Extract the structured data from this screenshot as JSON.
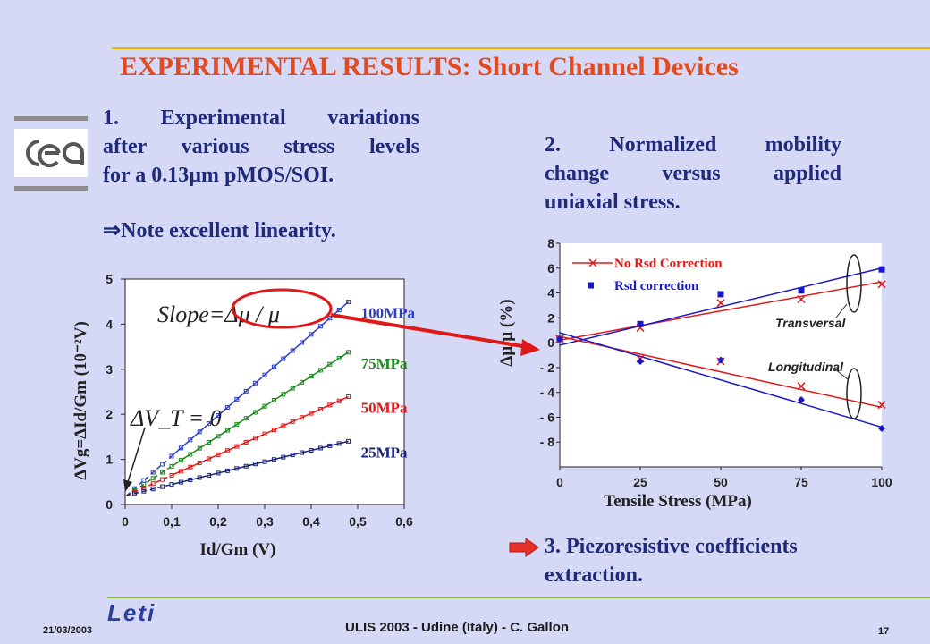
{
  "slide": {
    "title": "EXPERIMENTAL RESULTS: Short Channel Devices",
    "point1": [
      "1.  Experimental  variations",
      "after  various  stress  levels",
      "for a 0.13µm pMOS/SOI."
    ],
    "note": "⇒Note excellent linearity.",
    "point2": [
      "2.   Normalized   mobility",
      "change   versus   applied",
      "uniaxial stress."
    ],
    "point3": [
      "3.  Piezoresistive coefficients",
      "extraction."
    ],
    "footer_date": "21/03/2003",
    "footer_conf": "ULIS 2003 - Udine (Italy) - C. Gallon",
    "footer_page": "17",
    "logo_text": "Leti"
  },
  "colors": {
    "title": "#e34a1f",
    "text": "#1f2a7a",
    "background": "#d6d9f6"
  },
  "chart_data": [
    {
      "type": "line",
      "xlabel": "Id/Gm (V)",
      "ylabel": "ΔVg=ΔId/Gm (10⁻²V)",
      "xticks": [
        "0",
        "0,1",
        "0,2",
        "0,3",
        "0,4",
        "0,5",
        "0,6"
      ],
      "yticks": [
        "0",
        "1",
        "2",
        "3",
        "4",
        "5"
      ],
      "xlim": [
        0,
        0.6
      ],
      "ylim": [
        0,
        5
      ],
      "annotations": [
        "Slope=Δμ / μ",
        "ΔV_T = 0"
      ],
      "series": [
        {
          "name": "100MPa",
          "color": "#2a3ec8",
          "slope": 10.0,
          "x": [
            0.02,
            0.04,
            0.06,
            0.08,
            0.1,
            0.12,
            0.14,
            0.16,
            0.18,
            0.2,
            0.22,
            0.24,
            0.26,
            0.28,
            0.3,
            0.32,
            0.34,
            0.36,
            0.38,
            0.4,
            0.42,
            0.44,
            0.46,
            0.48
          ]
        },
        {
          "name": "75MPa",
          "color": "#1a8a1a",
          "slope": 7.4,
          "x": [
            0.02,
            0.04,
            0.06,
            0.08,
            0.1,
            0.12,
            0.14,
            0.16,
            0.18,
            0.2,
            0.22,
            0.24,
            0.26,
            0.28,
            0.3,
            0.32,
            0.34,
            0.36,
            0.38,
            0.4,
            0.42,
            0.44,
            0.46,
            0.48
          ]
        },
        {
          "name": "50MPa",
          "color": "#e01818",
          "slope": 5.1,
          "x": [
            0.02,
            0.04,
            0.06,
            0.08,
            0.1,
            0.12,
            0.14,
            0.16,
            0.18,
            0.2,
            0.22,
            0.24,
            0.26,
            0.28,
            0.3,
            0.32,
            0.34,
            0.36,
            0.38,
            0.4,
            0.42,
            0.44,
            0.46,
            0.48
          ]
        },
        {
          "name": "25MPa",
          "color": "#1a237a",
          "slope": 2.8,
          "x": [
            0.02,
            0.04,
            0.06,
            0.08,
            0.1,
            0.12,
            0.14,
            0.16,
            0.18,
            0.2,
            0.22,
            0.24,
            0.26,
            0.28,
            0.3,
            0.32,
            0.34,
            0.36,
            0.38,
            0.4,
            0.42,
            0.44,
            0.46,
            0.48
          ]
        }
      ]
    },
    {
      "type": "scatter",
      "xlabel": "Tensile Stress (MPa)",
      "ylabel": "Δμ/μ  (%)",
      "xticks": [
        "0",
        "25",
        "50",
        "75",
        "100"
      ],
      "yticks": [
        "8",
        "6",
        "4",
        "2",
        "0",
        "- 2",
        "- 4",
        "- 6",
        "- 8"
      ],
      "xlim": [
        0,
        100
      ],
      "ylim": [
        -10,
        8
      ],
      "legend_position": "top-left",
      "annotations": [
        "Transversal",
        "Longitudinal"
      ],
      "series": [
        {
          "name": "No Rsd Correction",
          "marker": "x",
          "color": "#e01818",
          "group": "Transversal",
          "x": [
            0,
            25,
            50,
            75,
            100
          ],
          "y": [
            0.3,
            1.2,
            3.2,
            3.5,
            4.7
          ]
        },
        {
          "name": "Rsd correction",
          "marker": "square",
          "color": "#1818c8",
          "group": "Transversal",
          "x": [
            0,
            25,
            50,
            75,
            100
          ],
          "y": [
            0.3,
            1.5,
            3.9,
            4.2,
            5.9
          ]
        },
        {
          "name": "No Rsd Correction",
          "marker": "x",
          "color": "#e01818",
          "group": "Longitudinal",
          "x": [
            0,
            25,
            50,
            75,
            100
          ],
          "y": [
            0.3,
            -1.3,
            -1.5,
            -3.5,
            -5.0
          ]
        },
        {
          "name": "Rsd correction",
          "marker": "diamond",
          "color": "#1818c8",
          "group": "Longitudinal",
          "x": [
            0,
            25,
            50,
            75,
            100
          ],
          "y": [
            0.3,
            -1.5,
            -1.4,
            -4.6,
            -6.9
          ]
        }
      ],
      "fit_lines": [
        {
          "color": "#e01818",
          "from": [
            0,
            0.2
          ],
          "to": [
            100,
            4.9
          ]
        },
        {
          "color": "#1818c8",
          "from": [
            0,
            -0.2
          ],
          "to": [
            100,
            6.0
          ]
        },
        {
          "color": "#e01818",
          "from": [
            0,
            0.5
          ],
          "to": [
            100,
            -5.2
          ]
        },
        {
          "color": "#1818c8",
          "from": [
            0,
            0.8
          ],
          "to": [
            100,
            -6.8
          ]
        }
      ]
    }
  ]
}
